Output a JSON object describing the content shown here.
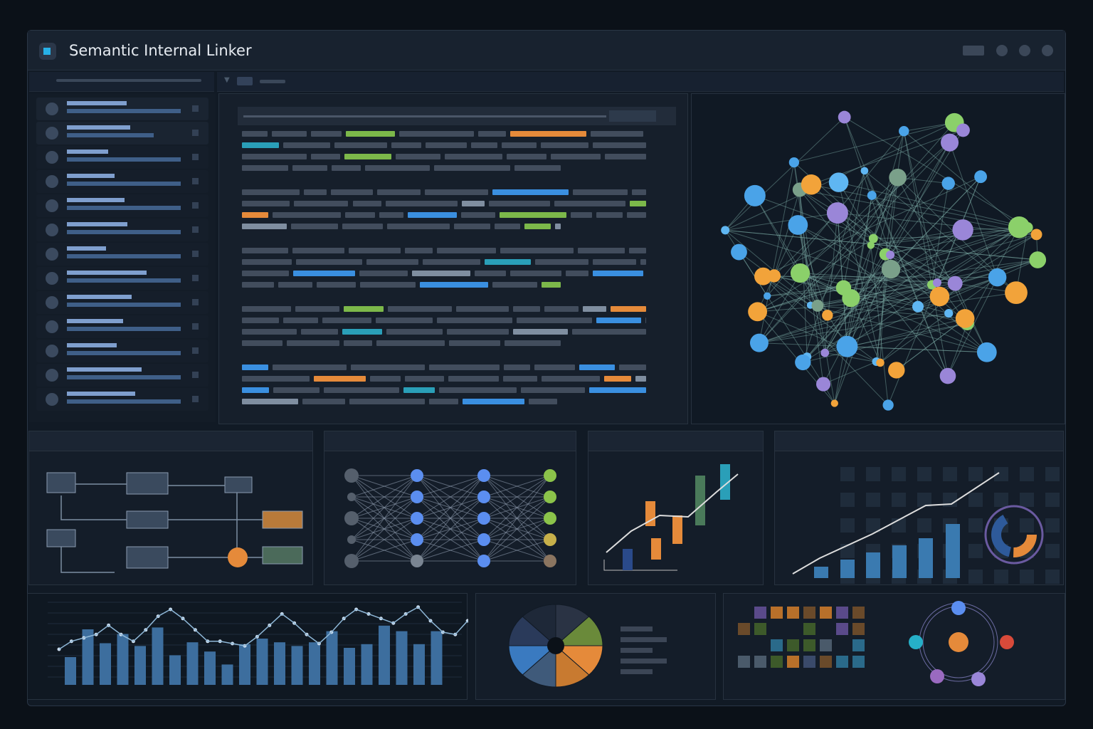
{
  "app": {
    "title": "Semantic Internal Linker"
  },
  "icons": {
    "logo": "app-logo-icon",
    "window_controls": [
      "minimize-icon",
      "dot-icon",
      "dot-icon",
      "close-icon"
    ],
    "graph": "link-graph-icon"
  },
  "colors": {
    "accent": "#27b1e8",
    "green": "#7cb84a",
    "orange": "#e58a3a",
    "blue": "#3a8fe0",
    "teal": "#2a9fb8",
    "purple": "#9a86d8",
    "background": "#111a25"
  },
  "sidebar": {
    "item_count": 13
  },
  "bottom_chart": {
    "line": [
      45,
      52,
      55,
      58,
      66,
      58,
      52,
      62,
      74,
      80,
      72,
      62,
      52,
      52,
      50,
      48,
      56,
      66,
      76,
      68,
      58,
      50,
      60,
      72,
      80,
      76,
      72,
      68,
      76,
      82,
      70,
      60,
      58,
      70
    ],
    "bars": [
      30,
      60,
      45,
      55,
      42,
      62,
      32,
      46,
      36,
      22,
      44,
      50,
      46,
      42,
      46,
      58,
      40,
      44,
      64,
      58,
      44,
      58
    ]
  }
}
